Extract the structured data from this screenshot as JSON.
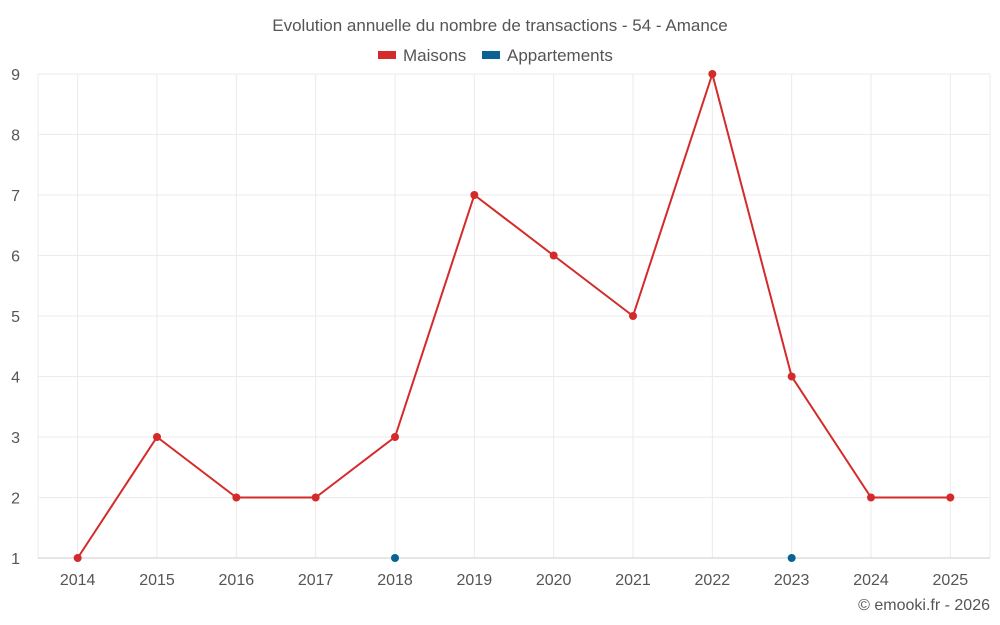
{
  "chart_data": {
    "type": "line",
    "title": "Evolution annuelle du nombre de transactions - 54 - Amance",
    "categories": [
      "2014",
      "2015",
      "2016",
      "2017",
      "2018",
      "2019",
      "2020",
      "2021",
      "2022",
      "2023",
      "2024",
      "2025"
    ],
    "series": [
      {
        "name": "Maisons",
        "color": "#d42a2a",
        "values": [
          1,
          3,
          2,
          2,
          3,
          7,
          6,
          5,
          9,
          4,
          2,
          2
        ]
      },
      {
        "name": "Appartements",
        "color": "#0b6295",
        "values": [
          null,
          null,
          null,
          null,
          1,
          null,
          null,
          null,
          null,
          1,
          null,
          null
        ]
      }
    ],
    "ylim": [
      1,
      9
    ],
    "yticks": [
      1,
      2,
      3,
      4,
      5,
      6,
      7,
      8,
      9
    ],
    "grid": true,
    "legend": "top-center"
  },
  "credit": "© emooki.fr - 2026"
}
